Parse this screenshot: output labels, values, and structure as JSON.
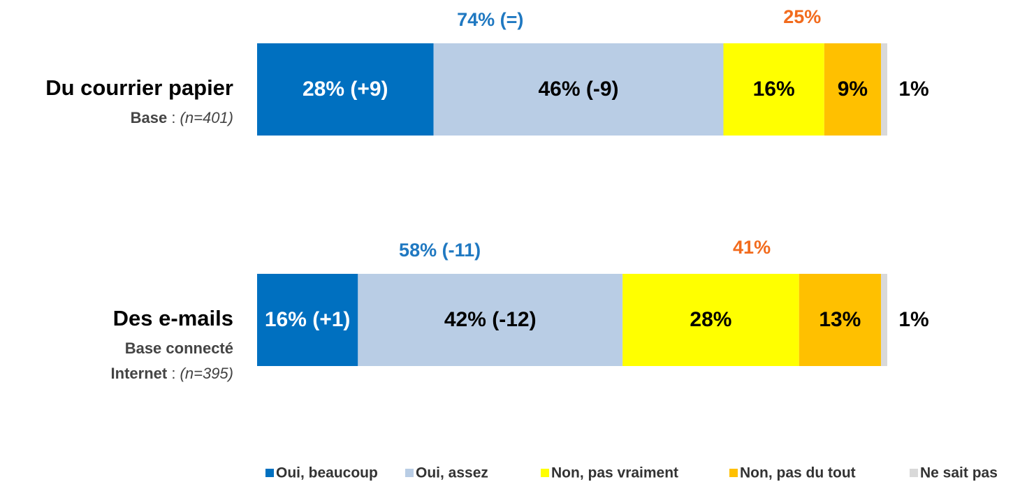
{
  "chart_data": {
    "type": "stacked-bar-horizontal",
    "categories": [
      "Du courrier papier",
      "Des e-mails"
    ],
    "base_labels": [
      {
        "lead": [
          "Base"
        ],
        "separator": " : ",
        "sample": "(n=401)"
      },
      {
        "lead": [
          "Base connecté",
          "Internet"
        ],
        "separator": " : ",
        "sample": "(n=395)"
      }
    ],
    "xlim": [
      0,
      100
    ],
    "series": [
      {
        "name": "Oui, beaucoup",
        "color": "#0070c0",
        "label_color": "#ffffff",
        "values": [
          28,
          16
        ],
        "value_labels": [
          "28% (+9)",
          "16% (+1)"
        ]
      },
      {
        "name": "Oui, assez",
        "color": "#b9cde5",
        "label_color": "#000000",
        "values": [
          46,
          42
        ],
        "value_labels": [
          "46% (-9)",
          "42% (-12)"
        ]
      },
      {
        "name": "Non, pas vraiment",
        "color": "#ffff00",
        "label_color": "#000000",
        "values": [
          16,
          28
        ],
        "value_labels": [
          "16%",
          "28%"
        ]
      },
      {
        "name": "Non, pas du tout",
        "color": "#ffc000",
        "label_color": "#000000",
        "values": [
          9,
          13
        ],
        "value_labels": [
          "9%",
          "13%"
        ]
      },
      {
        "name": "Ne sait pas",
        "color": "#d9d9d9",
        "label_color": "#000000",
        "values": [
          1,
          1
        ],
        "value_labels": [
          "1%",
          "1%"
        ]
      }
    ],
    "totals": [
      {
        "color": "#1f78c1",
        "values": [
          74,
          58
        ],
        "value_labels": [
          "74% (=)",
          "58% (-11)"
        ]
      },
      {
        "color": "#f26b1d",
        "values": [
          25,
          41
        ],
        "value_labels": [
          "25%",
          "41%"
        ]
      }
    ],
    "legend": "bottom-right"
  }
}
